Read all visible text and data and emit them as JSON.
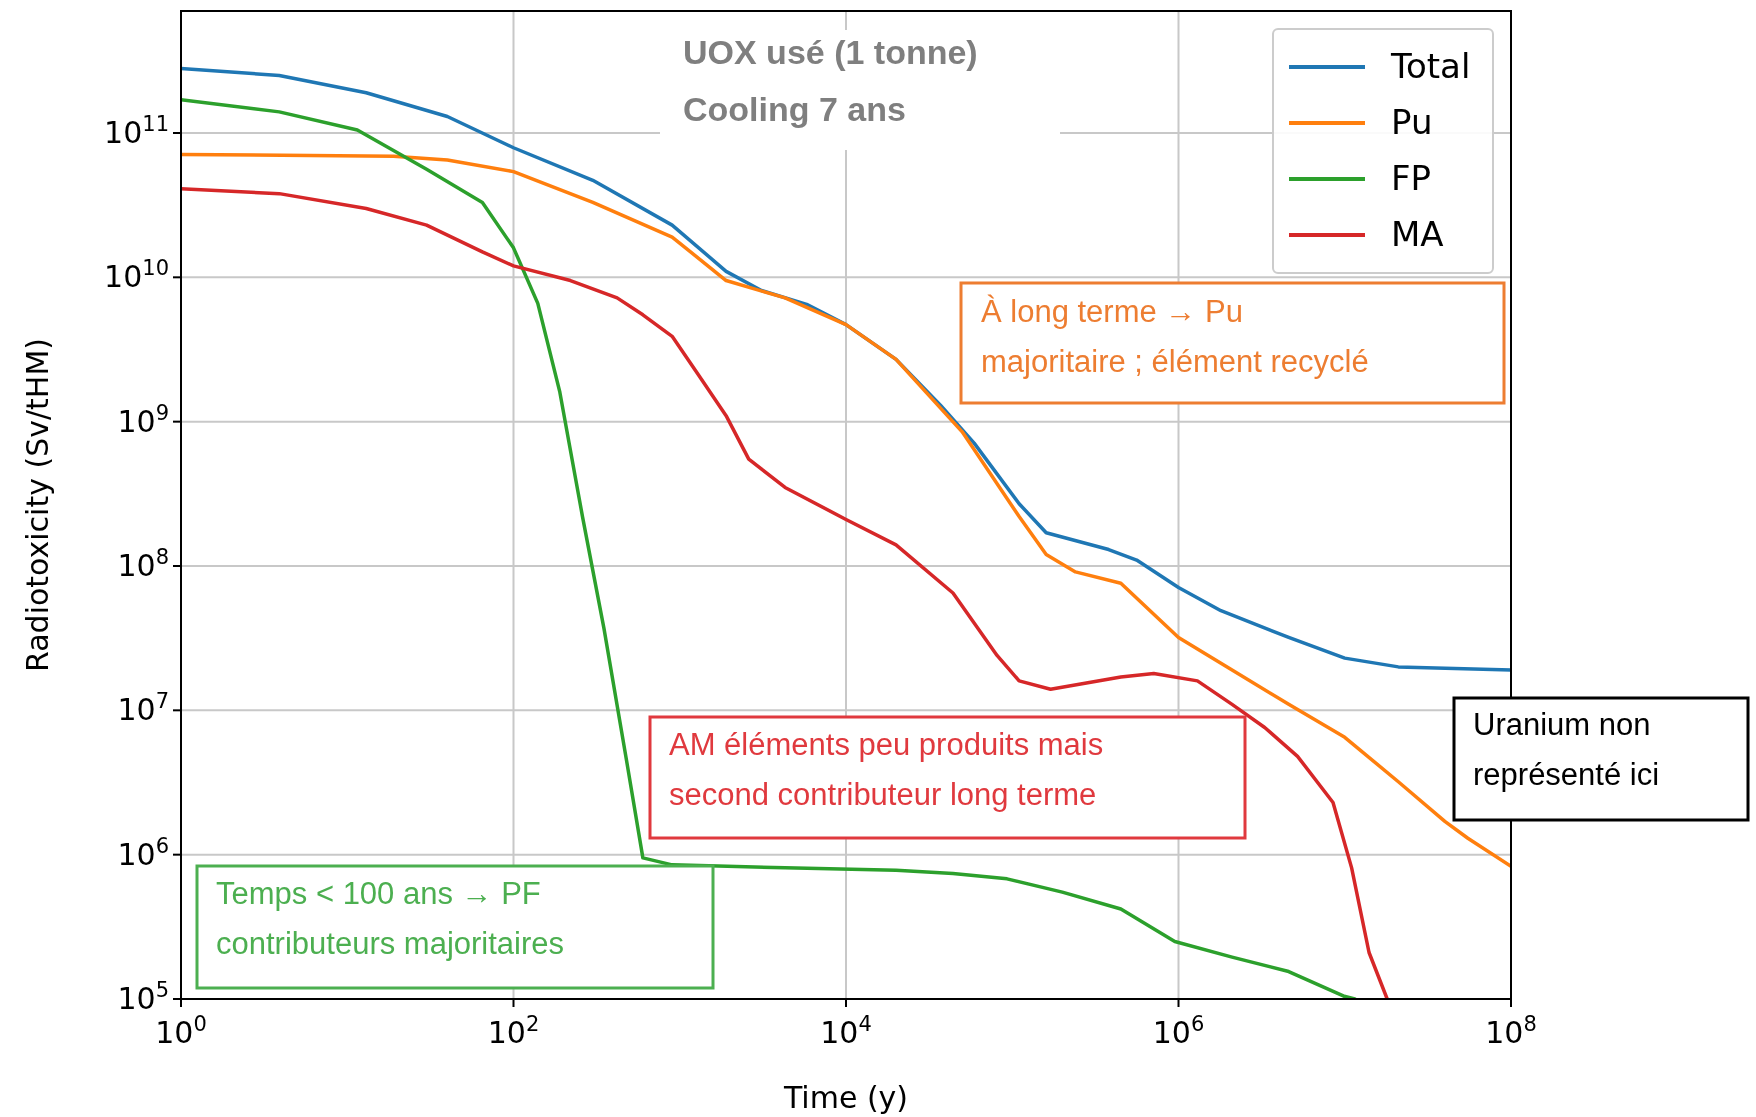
{
  "chart_data": {
    "type": "line",
    "xlabel": "Time (y)",
    "ylabel": "Radiotoxicity (Sv/tHM)",
    "log": "xy",
    "grid": true,
    "legend": "top right",
    "line_style": "solid",
    "xlim": [
      1,
      100000000
    ],
    "ylim": [
      100000,
      700000000000
    ],
    "xticks": [
      {
        "value": 1,
        "label": "10$^{0}$"
      },
      {
        "value": 100,
        "label": "10$^{2}$"
      },
      {
        "value": 10000,
        "label": "10$^{4}$"
      },
      {
        "value": 1000000,
        "label": "10$^{6}$"
      },
      {
        "value": 100000000,
        "label": "10$^{8}$"
      }
    ],
    "yticks": [
      {
        "value": 100000,
        "label": "10$^{5}$"
      },
      {
        "value": 1000000,
        "label": "10$^{6}$"
      },
      {
        "value": 10000000,
        "label": "10$^{7}$"
      },
      {
        "value": 100000000,
        "label": "10$^{8}$"
      },
      {
        "value": 1000000000,
        "label": "10$^{9}$"
      },
      {
        "value": 10000000000,
        "label": "10$^{10}$"
      },
      {
        "value": 100000000000,
        "label": "10$^{11}$"
      }
    ],
    "series": [
      {
        "name": "Total",
        "color": "#1f77b4",
        "x": [
          1,
          3.9,
          13,
          40,
          100,
          300,
          900,
          1900,
          3100,
          5800,
          10000.0,
          20000.0,
          37000.0,
          59000.0,
          110000.0,
          160000.0,
          380000.0,
          560000.0,
          1000000.0,
          1800000.0,
          4600000.0,
          10000000.0,
          21000000.0,
          100000000.0
        ],
        "values": [
          280000000000.0,
          250000000000.0,
          190000000000.0,
          130000000000.0,
          79000000000.0,
          47000000000.0,
          23000000000.0,
          11000000000.0,
          8100000000.0,
          6500000000.0,
          4700000000.0,
          2700000000.0,
          1300000000.0,
          710000000.0,
          270000000.0,
          170000000.0,
          130000000.0,
          110000000.0,
          71000000.0,
          49000000.0,
          32000000.0,
          23000000.0,
          20000000.0,
          19000000.0
        ]
      },
      {
        "name": "Pu",
        "color": "#ff7f0e",
        "x": [
          1,
          19,
          40,
          100,
          300,
          900,
          1900,
          4300,
          10000.0,
          20000.0,
          50000.0,
          110000.0,
          160000.0,
          240000.0,
          450000.0,
          1000000.0,
          2100000.0,
          4600000.0,
          10000000.0,
          21000000.0,
          40000000.0,
          55000000.0,
          100000000.0
        ],
        "values": [
          71000000000.0,
          69000000000.0,
          65000000000.0,
          54000000000.0,
          33000000000.0,
          19000000000.0,
          9500000000.0,
          7200000000.0,
          4700000000.0,
          2700000000.0,
          850000000.0,
          220000000.0,
          120000000.0,
          91000000.0,
          76000000.0,
          32000000.0,
          19000000.0,
          11000000.0,
          6500000.0,
          3200000.0,
          1700000.0,
          1300000.0,
          830000.0
        ]
      },
      {
        "name": "FP",
        "color": "#2ca02c",
        "x": [
          1,
          3.9,
          11.5,
          30,
          65,
          100,
          140,
          190,
          260,
          350,
          480,
          600,
          900,
          4300,
          20000.0,
          44000.0,
          93000.0,
          200000.0,
          450000.0,
          950000.0,
          2100000.0,
          4600000.0,
          9800000.0,
          11500000.0
        ],
        "values": [
          170000000000.0,
          140000000000.0,
          105000000000.0,
          56000000000.0,
          33000000000.0,
          16000000000.0,
          6600000000.0,
          1600000000.0,
          220000000.0,
          37000000.0,
          4400000.0,
          950000.0,
          850000.0,
          810000.0,
          780000.0,
          740000.0,
          680000.0,
          550000.0,
          420000.0,
          250000.0,
          195000.0,
          155000.0,
          105000.0,
          100000.0
        ]
      },
      {
        "name": "MA",
        "color": "#d62728",
        "x": [
          1,
          3.9,
          13,
          30,
          65,
          100,
          220,
          420,
          600,
          900,
          1300,
          1900,
          2600,
          4300,
          10000.0,
          20000.0,
          44000.0,
          81000.0,
          110000.0,
          170000.0,
          450000.0,
          710000.0,
          1300000.0,
          2100000.0,
          3300000.0,
          5200000.0,
          8500000.0,
          11000000.0,
          14000000.0,
          18000000.0
        ],
        "values": [
          41000000000.0,
          38000000000.0,
          30000000000.0,
          23000000000.0,
          15000000000.0,
          12000000000.0,
          9500000000.0,
          7200000000.0,
          5500000000.0,
          3900000000.0,
          2100000000.0,
          1100000000.0,
          550000000.0,
          350000000.0,
          210000000.0,
          140000000.0,
          65000000.0,
          24000000.0,
          16000000.0,
          14000000.0,
          17000000.0,
          18000000.0,
          16000000.0,
          11000000.0,
          7600000.0,
          4800000.0,
          2300000.0,
          810000.0,
          210000.0,
          100000.0
        ]
      }
    ],
    "annotations": [
      "UOX usé (1 tonne)\nCooling 7 ans",
      "À long terme → Pu\nmajoritaire ; élément recyclé",
      "AM éléments peu produits mais\nsecond contributeur long terme",
      "Temps < 100 ans → PF\ncontributeurs majoritaires",
      "Uranium non\nreprésenté ici"
    ]
  }
}
